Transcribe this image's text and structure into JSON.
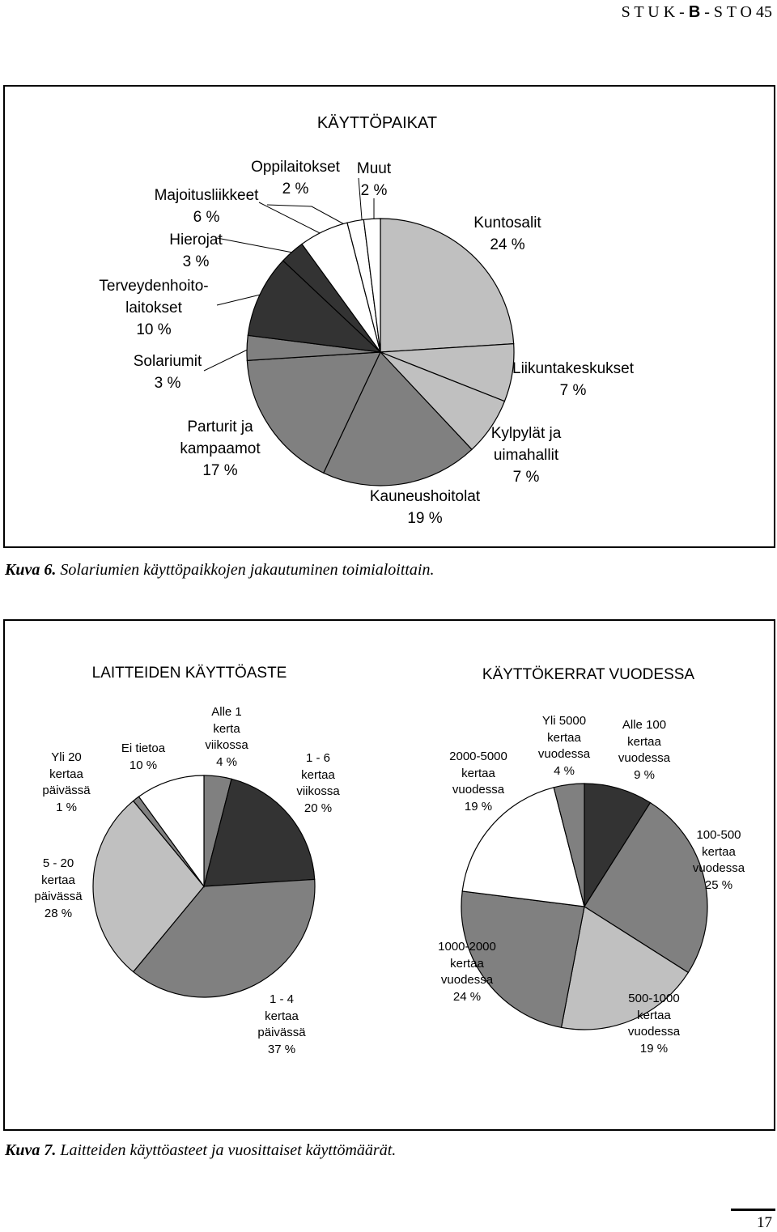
{
  "header": {
    "parts": [
      "S T U K - ",
      "B",
      " - S T O 45"
    ]
  },
  "chart_data": [
    {
      "type": "pie",
      "title": "KÄYTTÖPAIKAT",
      "categories": [
        "Kuntosalit",
        "Liikuntakeskukset",
        "Kylpylät ja\nuimahallit",
        "Kauneushoitolat",
        "Parturit ja\nkampaamot",
        "Solariumit",
        "Terveydenhoito-\nlaitokset",
        "Hierojat",
        "Majoitusliikkeet",
        "Oppilaitokset",
        "Muut"
      ],
      "values": [
        24,
        7,
        7,
        19,
        17,
        3,
        10,
        3,
        6,
        2,
        2
      ],
      "value_labels": [
        "24 %",
        "7 %",
        "7 %",
        "19 %",
        "17 %",
        "3 %",
        "10 %",
        "3 %",
        "6 %",
        "2 %",
        "2 %"
      ],
      "colors": [
        "#c0c0c0",
        "#c0c0c0",
        "#c0c0c0",
        "#808080",
        "#808080",
        "#808080",
        "#333333",
        "#333333",
        "#ffffff",
        "#ffffff",
        "#ffffff"
      ]
    },
    {
      "type": "pie",
      "title": "LAITTEIDEN KÄYTTÖASTE",
      "categories": [
        "Alle 1\nkerta\nviikossa",
        "1 - 6\nkertaa\nviikossa",
        "1 - 4\nkertaa\npäivässä",
        "5 - 20\nkertaa\npäivässä",
        "Yli 20\nkertaa\npäivässä",
        "Ei tietoa"
      ],
      "values": [
        4,
        20,
        37,
        28,
        1,
        10
      ],
      "value_labels": [
        "4 %",
        "20 %",
        "37 %",
        "28 %",
        "1 %",
        "10 %"
      ],
      "colors": [
        "#808080",
        "#333333",
        "#808080",
        "#c0c0c0",
        "#808080",
        "#ffffff"
      ]
    },
    {
      "type": "pie",
      "title": "KÄYTTÖKERRAT VUODESSA",
      "categories": [
        "Alle 100\nkertaa\nvuodessa",
        "100-500\nkertaa\nvuodessa",
        "500-1000\nkertaa\nvuodessa",
        "1000-2000\nkertaa\nvuodessa",
        "2000-5000\nkertaa\nvuodessa",
        "Yli 5000\nkertaa\nvuodessa"
      ],
      "values": [
        9,
        25,
        19,
        24,
        19,
        4
      ],
      "value_labels": [
        "9 %",
        "25 %",
        "19 %",
        "24 %",
        "19 %",
        "4 %"
      ],
      "colors": [
        "#333333",
        "#808080",
        "#c0c0c0",
        "#808080",
        "#ffffff",
        "#808080"
      ]
    }
  ],
  "captions": [
    {
      "label": "Kuva 6.",
      "text": " Solariumien käyttöpaikkojen jakautuminen toimialoittain."
    },
    {
      "label": "Kuva 7.",
      "text": " Laitteiden käyttöasteet ja vuosittaiset käyttömäärät."
    }
  ],
  "page_number": "17"
}
